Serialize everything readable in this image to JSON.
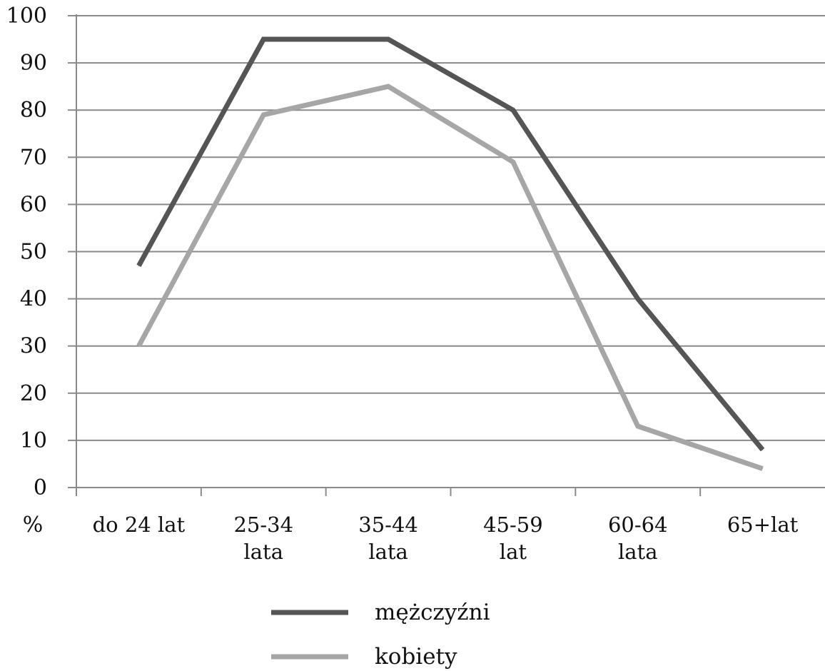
{
  "chart_data": {
    "type": "line",
    "ylabel": "%",
    "ylim": [
      0,
      100
    ],
    "yticks": [
      0,
      10,
      20,
      30,
      40,
      50,
      60,
      70,
      80,
      90,
      100
    ],
    "grid": true,
    "legend_position": "bottom",
    "categories": [
      [
        "do 24 lat"
      ],
      [
        "25-34",
        "lata"
      ],
      [
        "35-44",
        "lata"
      ],
      [
        "45-59",
        "lat"
      ],
      [
        "60-64",
        "lata"
      ],
      [
        "65+lat"
      ]
    ],
    "series": [
      {
        "name": "mężczyźni",
        "color": "#555555",
        "values": [
          47,
          95,
          95,
          80,
          40,
          8
        ]
      },
      {
        "name": "kobiety",
        "color": "#a6a6a6",
        "values": [
          30,
          79,
          85,
          69,
          13,
          4
        ]
      }
    ]
  }
}
